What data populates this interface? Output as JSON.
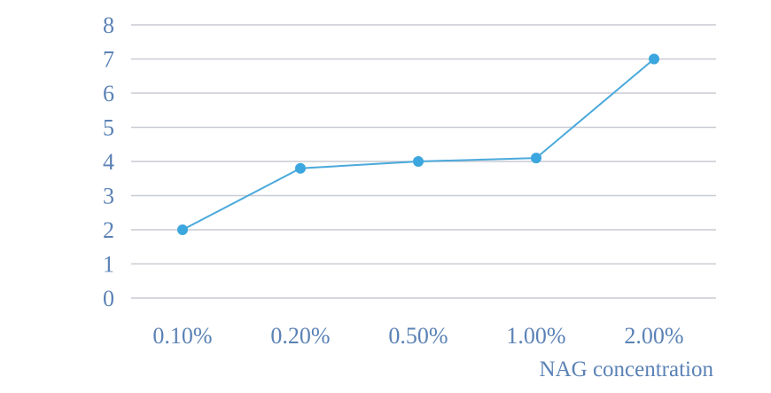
{
  "chart_data": {
    "type": "line",
    "categories": [
      "0.10%",
      "0.20%",
      "0.50%",
      "1.00%",
      "2.00%"
    ],
    "series": [
      {
        "values": [
          2.0,
          3.8,
          4.0,
          4.1,
          7.0
        ]
      }
    ],
    "title": "",
    "xlabel": "NAG concentration",
    "ylabel": "",
    "ylim": [
      0,
      8
    ],
    "yticks": [
      0,
      1,
      2,
      3,
      4,
      5,
      6,
      7,
      8
    ],
    "grid": "horizontal",
    "legend": "none",
    "colors": {
      "series": "#4aa9db",
      "marker": "#3ca6de",
      "gridline": "#c8ccd3",
      "tick_label": "#5b82b6",
      "axis_title": "#5b82b6"
    }
  }
}
